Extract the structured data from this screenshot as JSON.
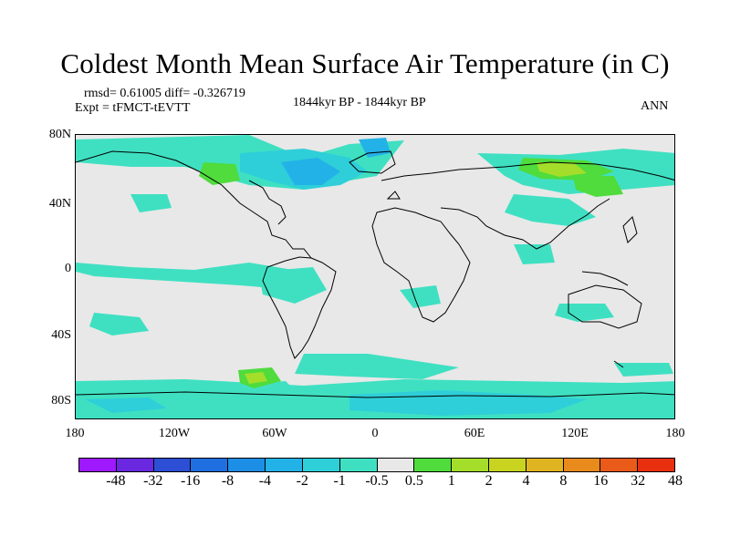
{
  "title": "Coldest Month Mean Surface Air Temperature (in C)",
  "stats": "rmsd= 0.61005 diff= -0.326719",
  "experiment": "Expt = tFMCT-tEVTT",
  "period": "1844kyr BP - 1844kyr BP",
  "season": "ANN",
  "lat_ticks": [
    "80N",
    "40N",
    "0",
    "40S",
    "80S"
  ],
  "lon_ticks": [
    "180",
    "120W",
    "60W",
    "0",
    "60E",
    "120E",
    "180"
  ],
  "colorbar": {
    "colors": [
      "#9e19ff",
      "#6a28e0",
      "#2d4fd6",
      "#1f6fe0",
      "#1c8ee6",
      "#23b2e8",
      "#2ecfd8",
      "#3fe0c2",
      "#e8e8e8",
      "#4fdc3c",
      "#a4de2a",
      "#c8d420",
      "#e0b420",
      "#e88a1c",
      "#ea5a18",
      "#e8300f"
    ],
    "labels": [
      "-48",
      "-32",
      "-16",
      "-8",
      "-4",
      "-2",
      "-1",
      "-0.5",
      "0.5",
      "1",
      "2",
      "4",
      "8",
      "16",
      "32",
      "48"
    ]
  }
}
